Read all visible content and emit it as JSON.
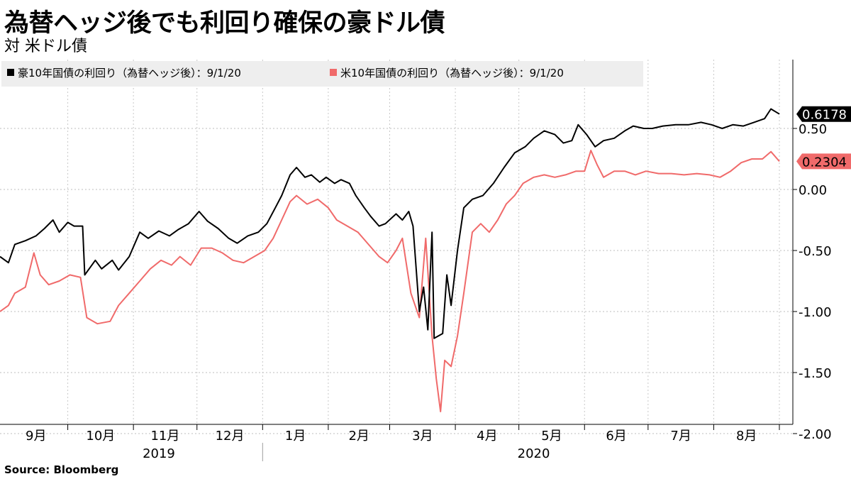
{
  "title": "為替ヘッジ後でも利回り確保の豪ドル債",
  "subtitle": "対 米ドル債",
  "source": "Source: Bloomberg",
  "chart_data": {
    "type": "line",
    "xlabel": "",
    "ylabel": "",
    "ylim": [
      -2.0,
      0.85
    ],
    "yticks": [
      -2.0,
      -1.5,
      -1.0,
      -0.5,
      0.0,
      0.5
    ],
    "ytick_labels": [
      "-2.00",
      "-1.50",
      "-1.00",
      "-0.50",
      "0.00",
      "0.50"
    ],
    "month_labels": [
      "9月",
      "10月",
      "11月",
      "12月",
      "1月",
      "2月",
      "3月",
      "4月",
      "5月",
      "6月",
      "7月",
      "8月"
    ],
    "year_labels": [
      "2019",
      "2020"
    ],
    "grid": true,
    "legend_position": "top-left",
    "series": [
      {
        "name": "豪10年国債の利回り（為替ヘッジ後）：9/1/20",
        "color": "#000000",
        "last_value_label": "0.6178",
        "points": [
          [
            "2019-08-30",
            -0.55
          ],
          [
            "2019-09-03",
            -0.6
          ],
          [
            "2019-09-06",
            -0.45
          ],
          [
            "2019-09-11",
            -0.42
          ],
          [
            "2019-09-16",
            -0.38
          ],
          [
            "2019-09-20",
            -0.32
          ],
          [
            "2019-09-24",
            -0.25
          ],
          [
            "2019-09-27",
            -0.35
          ],
          [
            "2019-10-01",
            -0.27
          ],
          [
            "2019-10-04",
            -0.3
          ],
          [
            "2019-10-08",
            -0.3
          ],
          [
            "2019-10-09",
            -0.7
          ],
          [
            "2019-10-14",
            -0.58
          ],
          [
            "2019-10-17",
            -0.65
          ],
          [
            "2019-10-22",
            -0.58
          ],
          [
            "2019-10-25",
            -0.66
          ],
          [
            "2019-10-30",
            -0.55
          ],
          [
            "2019-11-04",
            -0.35
          ],
          [
            "2019-11-08",
            -0.4
          ],
          [
            "2019-11-13",
            -0.34
          ],
          [
            "2019-11-18",
            -0.38
          ],
          [
            "2019-11-22",
            -0.33
          ],
          [
            "2019-11-27",
            -0.28
          ],
          [
            "2019-12-02",
            -0.18
          ],
          [
            "2019-12-06",
            -0.26
          ],
          [
            "2019-12-11",
            -0.32
          ],
          [
            "2019-12-16",
            -0.4
          ],
          [
            "2019-12-20",
            -0.44
          ],
          [
            "2019-12-25",
            -0.38
          ],
          [
            "2019-12-30",
            -0.35
          ],
          [
            "2020-01-03",
            -0.28
          ],
          [
            "2020-01-07",
            -0.15
          ],
          [
            "2020-01-10",
            -0.05
          ],
          [
            "2020-01-14",
            0.12
          ],
          [
            "2020-01-17",
            0.18
          ],
          [
            "2020-01-21",
            0.1
          ],
          [
            "2020-01-24",
            0.12
          ],
          [
            "2020-01-28",
            0.06
          ],
          [
            "2020-01-31",
            0.1
          ],
          [
            "2020-02-04",
            0.05
          ],
          [
            "2020-02-07",
            0.08
          ],
          [
            "2020-02-11",
            0.05
          ],
          [
            "2020-02-14",
            -0.05
          ],
          [
            "2020-02-18",
            -0.15
          ],
          [
            "2020-02-21",
            -0.22
          ],
          [
            "2020-02-25",
            -0.3
          ],
          [
            "2020-02-28",
            -0.28
          ],
          [
            "2020-03-04",
            -0.2
          ],
          [
            "2020-03-07",
            -0.25
          ],
          [
            "2020-03-10",
            -0.18
          ],
          [
            "2020-03-12",
            -0.3
          ],
          [
            "2020-03-15",
            -1.0
          ],
          [
            "2020-03-17",
            -0.8
          ],
          [
            "2020-03-19",
            -1.15
          ],
          [
            "2020-03-21",
            -0.35
          ],
          [
            "2020-03-22",
            -1.22
          ],
          [
            "2020-03-26",
            -1.18
          ],
          [
            "2020-03-28",
            -0.7
          ],
          [
            "2020-03-30",
            -0.95
          ],
          [
            "2020-04-02",
            -0.5
          ],
          [
            "2020-04-05",
            -0.15
          ],
          [
            "2020-04-09",
            -0.08
          ],
          [
            "2020-04-14",
            -0.05
          ],
          [
            "2020-04-19",
            0.05
          ],
          [
            "2020-04-24",
            0.18
          ],
          [
            "2020-04-29",
            0.3
          ],
          [
            "2020-05-04",
            0.35
          ],
          [
            "2020-05-08",
            0.42
          ],
          [
            "2020-05-13",
            0.48
          ],
          [
            "2020-05-18",
            0.45
          ],
          [
            "2020-05-22",
            0.38
          ],
          [
            "2020-05-26",
            0.4
          ],
          [
            "2020-05-29",
            0.53
          ],
          [
            "2020-06-02",
            0.45
          ],
          [
            "2020-06-06",
            0.35
          ],
          [
            "2020-06-10",
            0.4
          ],
          [
            "2020-06-15",
            0.42
          ],
          [
            "2020-06-20",
            0.48
          ],
          [
            "2020-06-24",
            0.52
          ],
          [
            "2020-06-29",
            0.5
          ],
          [
            "2020-07-03",
            0.5
          ],
          [
            "2020-07-08",
            0.52
          ],
          [
            "2020-07-14",
            0.53
          ],
          [
            "2020-07-20",
            0.53
          ],
          [
            "2020-07-26",
            0.55
          ],
          [
            "2020-07-31",
            0.53
          ],
          [
            "2020-08-05",
            0.5
          ],
          [
            "2020-08-10",
            0.53
          ],
          [
            "2020-08-15",
            0.52
          ],
          [
            "2020-08-20",
            0.55
          ],
          [
            "2020-08-25",
            0.58
          ],
          [
            "2020-08-28",
            0.66
          ],
          [
            "2020-09-01",
            0.6178
          ]
        ]
      },
      {
        "name": "米10年国債の利回り（為替ヘッジ後）：9/1/20",
        "color": "#f06a6a",
        "last_value_label": "0.2304",
        "points": [
          [
            "2019-08-30",
            -1.0
          ],
          [
            "2019-09-03",
            -0.95
          ],
          [
            "2019-09-06",
            -0.85
          ],
          [
            "2019-09-11",
            -0.8
          ],
          [
            "2019-09-15",
            -0.52
          ],
          [
            "2019-09-18",
            -0.7
          ],
          [
            "2019-09-22",
            -0.78
          ],
          [
            "2019-09-27",
            -0.75
          ],
          [
            "2019-10-02",
            -0.7
          ],
          [
            "2019-10-07",
            -0.72
          ],
          [
            "2019-10-10",
            -1.05
          ],
          [
            "2019-10-15",
            -1.1
          ],
          [
            "2019-10-21",
            -1.08
          ],
          [
            "2019-10-25",
            -0.95
          ],
          [
            "2019-10-30",
            -0.85
          ],
          [
            "2019-11-04",
            -0.75
          ],
          [
            "2019-11-09",
            -0.65
          ],
          [
            "2019-11-14",
            -0.58
          ],
          [
            "2019-11-19",
            -0.62
          ],
          [
            "2019-11-23",
            -0.55
          ],
          [
            "2019-11-28",
            -0.62
          ],
          [
            "2019-12-03",
            -0.48
          ],
          [
            "2019-12-08",
            -0.48
          ],
          [
            "2019-12-13",
            -0.52
          ],
          [
            "2019-12-18",
            -0.58
          ],
          [
            "2019-12-23",
            -0.6
          ],
          [
            "2019-12-28",
            -0.55
          ],
          [
            "2020-01-02",
            -0.5
          ],
          [
            "2020-01-06",
            -0.4
          ],
          [
            "2020-01-10",
            -0.25
          ],
          [
            "2020-01-14",
            -0.1
          ],
          [
            "2020-01-17",
            -0.05
          ],
          [
            "2020-01-22",
            -0.12
          ],
          [
            "2020-01-27",
            -0.08
          ],
          [
            "2020-02-01",
            -0.15
          ],
          [
            "2020-02-05",
            -0.25
          ],
          [
            "2020-02-10",
            -0.3
          ],
          [
            "2020-02-15",
            -0.35
          ],
          [
            "2020-02-20",
            -0.45
          ],
          [
            "2020-02-25",
            -0.55
          ],
          [
            "2020-02-29",
            -0.6
          ],
          [
            "2020-03-04",
            -0.5
          ],
          [
            "2020-03-07",
            -0.4
          ],
          [
            "2020-03-11",
            -0.85
          ],
          [
            "2020-03-15",
            -1.05
          ],
          [
            "2020-03-18",
            -0.4
          ],
          [
            "2020-03-21",
            -1.2
          ],
          [
            "2020-03-23",
            -1.55
          ],
          [
            "2020-03-25",
            -1.82
          ],
          [
            "2020-03-27",
            -1.4
          ],
          [
            "2020-03-30",
            -1.45
          ],
          [
            "2020-04-02",
            -1.2
          ],
          [
            "2020-04-05",
            -0.85
          ],
          [
            "2020-04-09",
            -0.35
          ],
          [
            "2020-04-13",
            -0.28
          ],
          [
            "2020-04-17",
            -0.35
          ],
          [
            "2020-04-21",
            -0.25
          ],
          [
            "2020-04-25",
            -0.12
          ],
          [
            "2020-04-29",
            -0.05
          ],
          [
            "2020-05-03",
            0.05
          ],
          [
            "2020-05-08",
            0.1
          ],
          [
            "2020-05-13",
            0.12
          ],
          [
            "2020-05-18",
            0.1
          ],
          [
            "2020-05-23",
            0.12
          ],
          [
            "2020-05-28",
            0.15
          ],
          [
            "2020-06-01",
            0.15
          ],
          [
            "2020-06-04",
            0.32
          ],
          [
            "2020-06-07",
            0.2
          ],
          [
            "2020-06-10",
            0.1
          ],
          [
            "2020-06-15",
            0.15
          ],
          [
            "2020-06-20",
            0.15
          ],
          [
            "2020-06-25",
            0.12
          ],
          [
            "2020-06-30",
            0.15
          ],
          [
            "2020-07-06",
            0.13
          ],
          [
            "2020-07-12",
            0.13
          ],
          [
            "2020-07-18",
            0.12
          ],
          [
            "2020-07-24",
            0.13
          ],
          [
            "2020-07-30",
            0.12
          ],
          [
            "2020-08-04",
            0.1
          ],
          [
            "2020-08-09",
            0.15
          ],
          [
            "2020-08-14",
            0.22
          ],
          [
            "2020-08-19",
            0.25
          ],
          [
            "2020-08-24",
            0.25
          ],
          [
            "2020-08-28",
            0.31
          ],
          [
            "2020-09-01",
            0.2304
          ]
        ]
      }
    ]
  }
}
